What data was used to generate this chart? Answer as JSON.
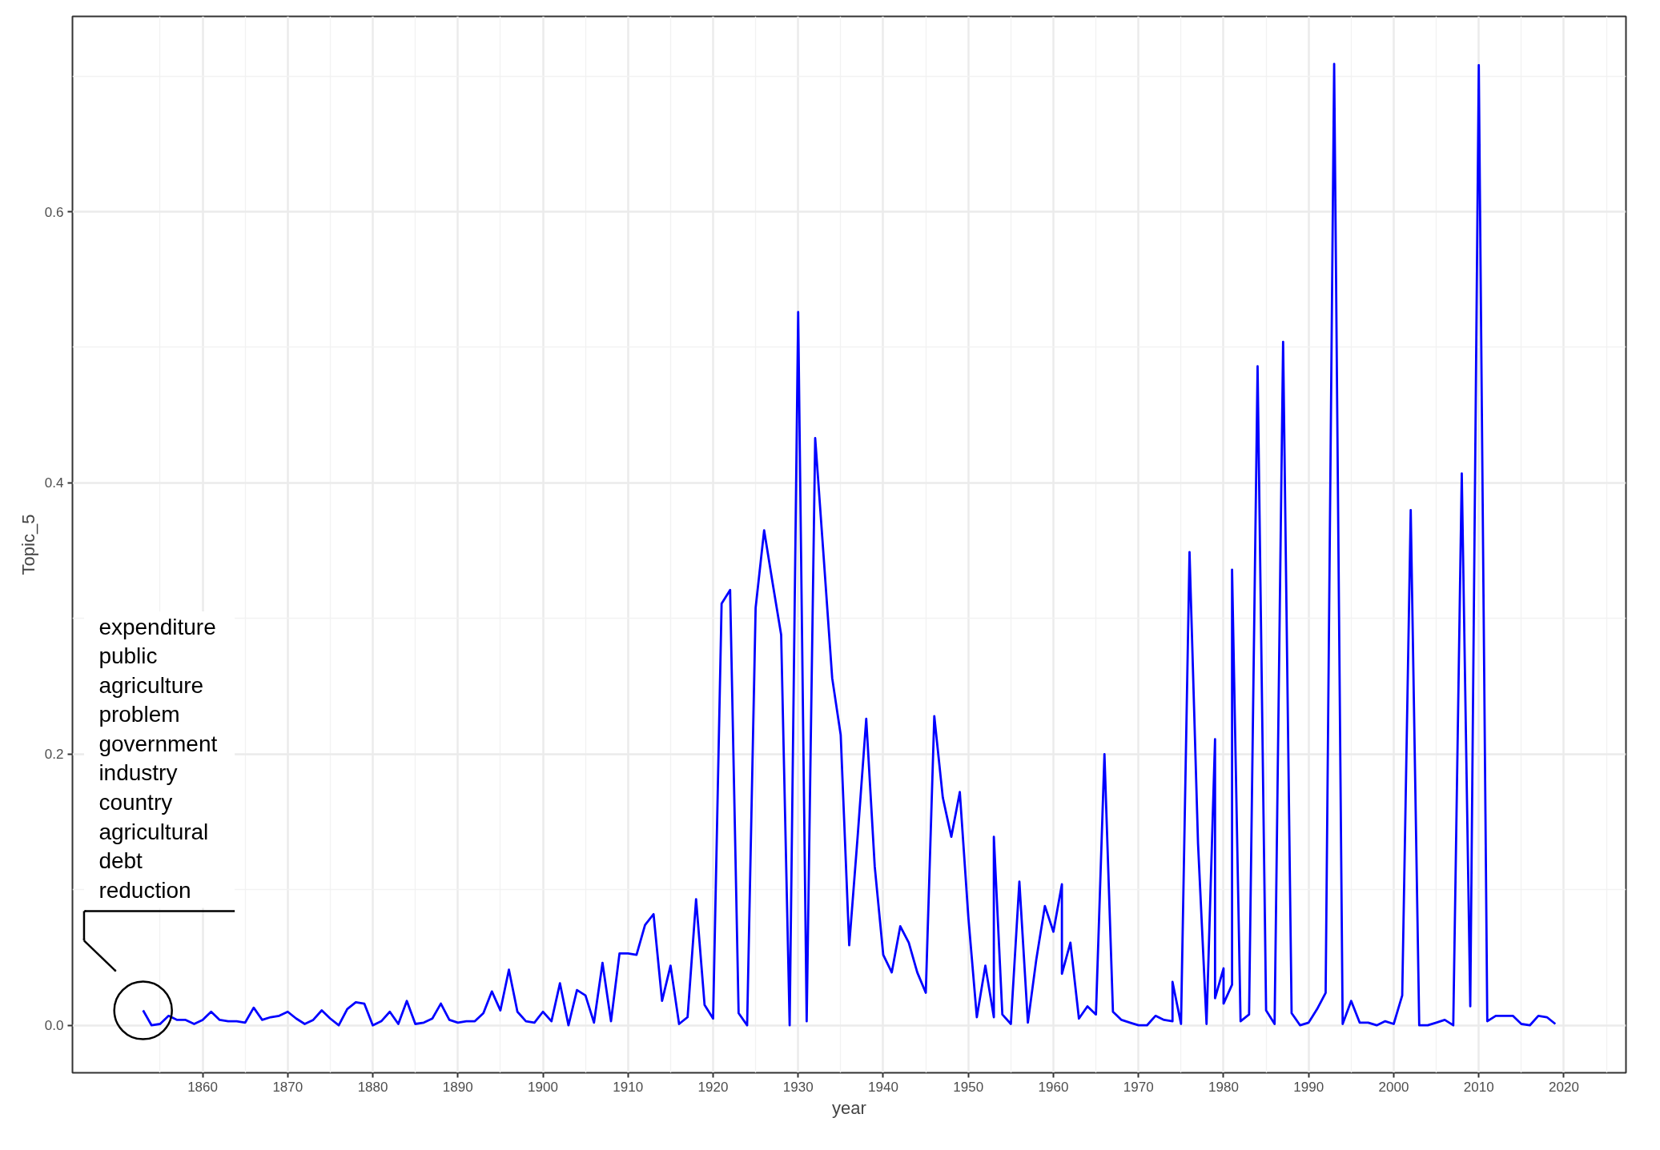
{
  "chart_data": {
    "type": "line",
    "xlabel": "year",
    "ylabel": "Topic_5",
    "xlim": [
      1844.7,
      2027.3
    ],
    "ylim": [
      -0.035,
      0.744
    ],
    "xticks": [
      1860,
      1870,
      1880,
      1890,
      1900,
      1910,
      1920,
      1930,
      1940,
      1950,
      1960,
      1970,
      1980,
      1990,
      2000,
      2010,
      2020
    ],
    "yticks": [
      {
        "value": 0,
        "label": "0.0"
      },
      {
        "value": 0.2,
        "label": "0.2"
      },
      {
        "value": 0.4,
        "label": "0.4"
      },
      {
        "value": 0.6,
        "label": "0.6"
      }
    ],
    "grid": true,
    "marker": "none",
    "line_style": "solid",
    "annotations": [
      "expenditure",
      "public",
      "agriculture",
      "problem",
      "government",
      "industry",
      "country",
      "agricultural",
      "debt",
      "reduction"
    ],
    "series": [
      {
        "color": "#0000ff",
        "x": [
          1853,
          1854,
          1855,
          1856,
          1857,
          1858,
          1859,
          1860,
          1861,
          1862,
          1863,
          1864,
          1865,
          1866,
          1867,
          1868,
          1869,
          1870,
          1871,
          1872,
          1873,
          1874,
          1875,
          1876,
          1877,
          1878,
          1879,
          1880,
          1881,
          1882,
          1883,
          1884,
          1885,
          1886,
          1887,
          1888,
          1889,
          1890,
          1891,
          1892,
          1893,
          1894,
          1895,
          1896,
          1897,
          1898,
          1899,
          1900,
          1901,
          1902,
          1903,
          1904,
          1905,
          1906,
          1907,
          1908,
          1909,
          1910,
          1911,
          1912,
          1913,
          1914,
          1915,
          1916,
          1917,
          1918,
          1919,
          1920,
          1921,
          1922,
          1923,
          1924,
          1925,
          1926,
          1927,
          1928,
          1929,
          1930,
          1931,
          1932,
          1933,
          1934,
          1935,
          1936,
          1937,
          1938,
          1939,
          1940,
          1941,
          1942,
          1943,
          1944,
          1945,
          1946,
          1947,
          1948,
          1949,
          1950,
          1951,
          1952,
          1953,
          1953,
          1954,
          1955,
          1956,
          1957,
          1958,
          1959,
          1960,
          1961,
          1961,
          1962,
          1963,
          1964,
          1965,
          1966,
          1967,
          1968,
          1969,
          1970,
          1971,
          1972,
          1973,
          1974,
          1974,
          1975,
          1976,
          1977,
          1978,
          1979,
          1979,
          1980,
          1980,
          1981,
          1981,
          1982,
          1983,
          1984,
          1985,
          1986,
          1987,
          1988,
          1989,
          1990,
          1991,
          1992,
          1993,
          1994,
          1995,
          1996,
          1997,
          1998,
          1999,
          2000,
          2001,
          2002,
          2003,
          2004,
          2005,
          2006,
          2007,
          2008,
          2009,
          2010,
          2011,
          2012,
          2013,
          2014,
          2015,
          2016,
          2017,
          2018,
          2019
        ],
        "values": [
          0.011,
          0.0,
          0.001,
          0.007,
          0.004,
          0.004,
          0.001,
          0.004,
          0.01,
          0.004,
          0.003,
          0.003,
          0.002,
          0.013,
          0.004,
          0.006,
          0.007,
          0.01,
          0.005,
          0.001,
          0.004,
          0.011,
          0.005,
          0.0,
          0.012,
          0.017,
          0.016,
          0.0,
          0.003,
          0.01,
          0.001,
          0.018,
          0.001,
          0.002,
          0.005,
          0.016,
          0.004,
          0.002,
          0.003,
          0.003,
          0.009,
          0.025,
          0.011,
          0.041,
          0.01,
          0.003,
          0.002,
          0.01,
          0.003,
          0.031,
          0.0,
          0.026,
          0.022,
          0.002,
          0.046,
          0.003,
          0.053,
          0.053,
          0.052,
          0.074,
          0.082,
          0.018,
          0.044,
          0.001,
          0.006,
          0.093,
          0.015,
          0.005,
          0.311,
          0.321,
          0.009,
          0.0,
          0.308,
          0.365,
          0.326,
          0.288,
          0.0,
          0.526,
          0.003,
          0.433,
          0.345,
          0.256,
          0.214,
          0.059,
          0.14,
          0.226,
          0.117,
          0.052,
          0.039,
          0.073,
          0.061,
          0.039,
          0.024,
          0.228,
          0.168,
          0.139,
          0.172,
          0.08,
          0.006,
          0.044,
          0.006,
          0.139,
          0.008,
          0.001,
          0.106,
          0.002,
          0.049,
          0.088,
          0.069,
          0.104,
          0.038,
          0.061,
          0.005,
          0.014,
          0.008,
          0.2,
          0.01,
          0.004,
          0.002,
          0.0,
          0.0,
          0.007,
          0.004,
          0.003,
          0.032,
          0.001,
          0.349,
          0.134,
          0.001,
          0.211,
          0.02,
          0.042,
          0.016,
          0.03,
          0.336,
          0.003,
          0.008,
          0.486,
          0.011,
          0.001,
          0.504,
          0.009,
          0.0,
          0.002,
          0.012,
          0.024,
          0.709,
          0.001,
          0.018,
          0.002,
          0.002,
          0.0,
          0.003,
          0.001,
          0.022,
          0.38,
          0.0,
          0.0,
          0.002,
          0.004,
          0.0,
          0.407,
          0.014,
          0.708,
          0.003,
          0.007,
          0.007,
          0.007,
          0.001,
          0.0,
          0.007,
          0.006,
          0.001
        ]
      }
    ]
  }
}
